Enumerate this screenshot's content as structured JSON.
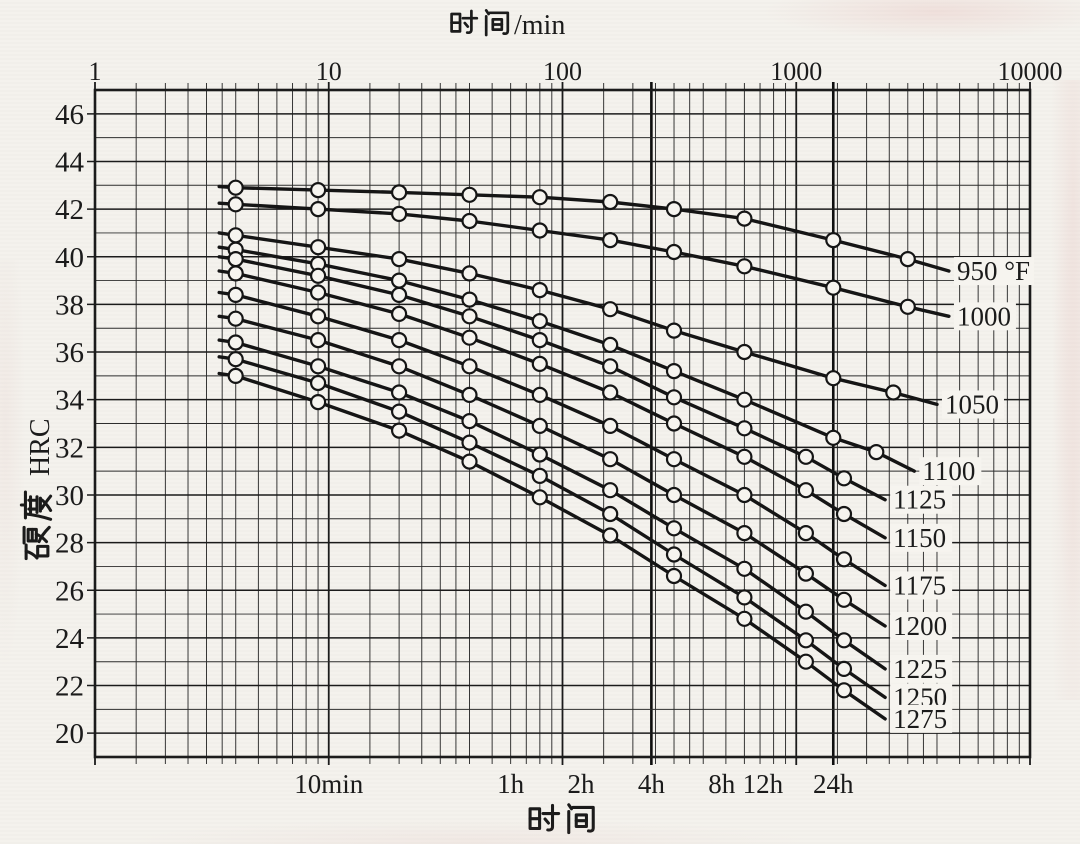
{
  "page": {
    "background": "#f4f2ed",
    "paper": "#f6f4ef",
    "ink": "#1b1b1b"
  },
  "chart_data": {
    "type": "line",
    "title_top": "时间/min",
    "title_top_cjk": "时间",
    "title_top_suffix": "/min",
    "title_bottom": "时间",
    "ylabel": "硬度 HRC",
    "ylabel_cjk": "硬度",
    "ylabel_latin": "HRC",
    "x_scale": "log",
    "x_unit_top": "min",
    "x_range_minutes": [
      1,
      10000
    ],
    "y_range_hrc": [
      19,
      47
    ],
    "grid": true,
    "legend_position": "labels-at-curve-ends",
    "series_unit": "°F",
    "x_top_tick_labels": [
      "1",
      "10",
      "100",
      "1000",
      "10000"
    ],
    "x_top_tick_minutes": [
      1,
      10,
      100,
      1000,
      10000
    ],
    "y_tick_labels": [
      46,
      44,
      42,
      40,
      38,
      36,
      34,
      32,
      30,
      28,
      26,
      24,
      22,
      20
    ],
    "x_bottom_ticks": [
      {
        "label": "10min",
        "minutes": 10
      },
      {
        "label": "1h",
        "minutes": 60
      },
      {
        "label": "2h",
        "minutes": 120
      },
      {
        "label": "4h",
        "minutes": 240
      },
      {
        "label": "8h",
        "minutes": 480
      },
      {
        "label": "12h",
        "minutes": 720
      },
      {
        "label": "24h",
        "minutes": 1440
      }
    ],
    "emphasized_vlines_minutes": [
      240,
      1440
    ],
    "series": [
      {
        "label": "950 °F",
        "temperature_f": 950,
        "line_start": [
          3.4,
          42.95
        ],
        "points": [
          [
            4,
            42.9
          ],
          [
            9,
            42.8
          ],
          [
            20,
            42.7
          ],
          [
            40,
            42.6
          ],
          [
            80,
            42.5
          ],
          [
            160,
            42.3
          ],
          [
            300,
            42.0
          ],
          [
            600,
            41.6
          ],
          [
            1440,
            40.7
          ],
          [
            3000,
            39.9
          ]
        ],
        "line_end": [
          4500,
          39.4
        ]
      },
      {
        "label": "1000",
        "temperature_f": 1000,
        "line_start": [
          3.4,
          42.25
        ],
        "points": [
          [
            4,
            42.2
          ],
          [
            9,
            42.0
          ],
          [
            20,
            41.8
          ],
          [
            40,
            41.5
          ],
          [
            80,
            41.1
          ],
          [
            160,
            40.7
          ],
          [
            300,
            40.2
          ],
          [
            600,
            39.6
          ],
          [
            1440,
            38.7
          ],
          [
            3000,
            37.9
          ]
        ],
        "line_end": [
          4500,
          37.5
        ]
      },
      {
        "label": "1050",
        "temperature_f": 1050,
        "line_start": [
          3.4,
          41.0
        ],
        "points": [
          [
            4,
            40.9
          ],
          [
            9,
            40.4
          ],
          [
            20,
            39.9
          ],
          [
            40,
            39.3
          ],
          [
            80,
            38.6
          ],
          [
            160,
            37.8
          ],
          [
            300,
            36.9
          ],
          [
            600,
            36.0
          ],
          [
            1440,
            34.9
          ],
          [
            2600,
            34.3
          ]
        ],
        "line_end": [
          4000,
          33.8
        ]
      },
      {
        "label": "1100",
        "temperature_f": 1100,
        "line_start": [
          3.4,
          40.4
        ],
        "points": [
          [
            4,
            40.3
          ],
          [
            9,
            39.7
          ],
          [
            20,
            39.0
          ],
          [
            40,
            38.2
          ],
          [
            80,
            37.3
          ],
          [
            160,
            36.3
          ],
          [
            300,
            35.2
          ],
          [
            600,
            34.0
          ],
          [
            1440,
            32.4
          ],
          [
            2200,
            31.8
          ]
        ],
        "line_end": [
          3200,
          31.0
        ]
      },
      {
        "label": "1125",
        "temperature_f": 1125,
        "line_start": [
          3.4,
          40.0
        ],
        "points": [
          [
            4,
            39.9
          ],
          [
            9,
            39.2
          ],
          [
            20,
            38.4
          ],
          [
            40,
            37.5
          ],
          [
            80,
            36.5
          ],
          [
            160,
            35.4
          ],
          [
            300,
            34.1
          ],
          [
            600,
            32.8
          ],
          [
            1100,
            31.6
          ],
          [
            1600,
            30.7
          ]
        ],
        "line_end": [
          2400,
          29.8
        ]
      },
      {
        "label": "1150",
        "temperature_f": 1150,
        "line_start": [
          3.4,
          39.4
        ],
        "points": [
          [
            4,
            39.3
          ],
          [
            9,
            38.5
          ],
          [
            20,
            37.6
          ],
          [
            40,
            36.6
          ],
          [
            80,
            35.5
          ],
          [
            160,
            34.3
          ],
          [
            300,
            33.0
          ],
          [
            600,
            31.6
          ],
          [
            1100,
            30.2
          ],
          [
            1600,
            29.2
          ]
        ],
        "line_end": [
          2400,
          28.2
        ]
      },
      {
        "label": "1175",
        "temperature_f": 1175,
        "line_start": [
          3.4,
          38.5
        ],
        "points": [
          [
            4,
            38.4
          ],
          [
            9,
            37.5
          ],
          [
            20,
            36.5
          ],
          [
            40,
            35.4
          ],
          [
            80,
            34.2
          ],
          [
            160,
            32.9
          ],
          [
            300,
            31.5
          ],
          [
            600,
            30.0
          ],
          [
            1100,
            28.4
          ],
          [
            1600,
            27.3
          ]
        ],
        "line_end": [
          2400,
          26.2
        ]
      },
      {
        "label": "1200",
        "temperature_f": 1200,
        "line_start": [
          3.4,
          37.5
        ],
        "points": [
          [
            4,
            37.4
          ],
          [
            9,
            36.5
          ],
          [
            20,
            35.4
          ],
          [
            40,
            34.2
          ],
          [
            80,
            32.9
          ],
          [
            160,
            31.5
          ],
          [
            300,
            30.0
          ],
          [
            600,
            28.4
          ],
          [
            1100,
            26.7
          ],
          [
            1600,
            25.6
          ]
        ],
        "line_end": [
          2400,
          24.5
        ]
      },
      {
        "label": "1225",
        "temperature_f": 1225,
        "line_start": [
          3.4,
          36.5
        ],
        "points": [
          [
            4,
            36.4
          ],
          [
            9,
            35.4
          ],
          [
            20,
            34.3
          ],
          [
            40,
            33.1
          ],
          [
            80,
            31.7
          ],
          [
            160,
            30.2
          ],
          [
            300,
            28.6
          ],
          [
            600,
            26.9
          ],
          [
            1100,
            25.1
          ],
          [
            1600,
            23.9
          ]
        ],
        "line_end": [
          2400,
          22.7
        ]
      },
      {
        "label": "1250",
        "temperature_f": 1250,
        "line_start": [
          3.4,
          35.8
        ],
        "points": [
          [
            4,
            35.7
          ],
          [
            9,
            34.7
          ],
          [
            20,
            33.5
          ],
          [
            40,
            32.2
          ],
          [
            80,
            30.8
          ],
          [
            160,
            29.2
          ],
          [
            300,
            27.5
          ],
          [
            600,
            25.7
          ],
          [
            1100,
            23.9
          ],
          [
            1600,
            22.7
          ]
        ],
        "line_end": [
          2400,
          21.5
        ]
      },
      {
        "label": "1275",
        "temperature_f": 1275,
        "line_start": [
          3.4,
          35.1
        ],
        "points": [
          [
            4,
            35.0
          ],
          [
            9,
            33.9
          ],
          [
            20,
            32.7
          ],
          [
            40,
            31.4
          ],
          [
            80,
            29.9
          ],
          [
            160,
            28.3
          ],
          [
            300,
            26.6
          ],
          [
            600,
            24.8
          ],
          [
            1100,
            23.0
          ],
          [
            1600,
            21.8
          ]
        ],
        "line_end": [
          2400,
          20.6
        ]
      }
    ]
  }
}
